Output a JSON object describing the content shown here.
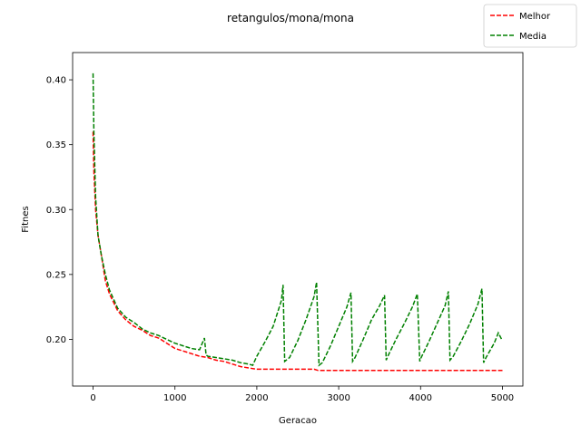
{
  "chart_data": {
    "type": "line",
    "title": "retangulos/mona/mona",
    "xlabel": "Geracao",
    "ylabel": "Fitnes",
    "xlim": [
      -250,
      5250
    ],
    "ylim": [
      0.164,
      0.421
    ],
    "xticks": [
      0,
      1000,
      2000,
      3000,
      4000,
      5000
    ],
    "yticks": [
      0.2,
      0.25,
      0.3,
      0.35,
      0.4
    ],
    "xtick_labels": [
      "0",
      "1000",
      "2000",
      "3000",
      "4000",
      "5000"
    ],
    "ytick_labels": [
      "0.20",
      "0.25",
      "0.30",
      "0.35",
      "0.40"
    ],
    "grid": false,
    "legend": {
      "placement": "top-right"
    },
    "series": [
      {
        "name": "Melhor",
        "color": "#ff0000",
        "style": "dashed",
        "x": [
          0,
          10,
          30,
          60,
          100,
          150,
          200,
          300,
          400,
          500,
          600,
          700,
          800,
          900,
          1000,
          1100,
          1200,
          1300,
          1400,
          1500,
          1600,
          1700,
          1800,
          1900,
          2000,
          2300,
          2700,
          2750,
          3000,
          4000,
          5000
        ],
        "y": [
          0.36,
          0.33,
          0.3,
          0.28,
          0.265,
          0.245,
          0.235,
          0.222,
          0.215,
          0.21,
          0.207,
          0.203,
          0.201,
          0.197,
          0.193,
          0.191,
          0.189,
          0.187,
          0.186,
          0.184,
          0.183,
          0.181,
          0.179,
          0.178,
          0.177,
          0.177,
          0.177,
          0.176,
          0.176,
          0.176,
          0.176
        ]
      },
      {
        "name": "Media",
        "color": "#008000",
        "style": "dashed",
        "x": [
          0,
          10,
          30,
          60,
          100,
          150,
          200,
          300,
          400,
          500,
          600,
          700,
          800,
          900,
          1000,
          1100,
          1200,
          1300,
          1360,
          1380,
          1400,
          1500,
          1600,
          1700,
          1800,
          1900,
          1950,
          2000,
          2100,
          2200,
          2300,
          2320,
          2340,
          2400,
          2500,
          2600,
          2700,
          2730,
          2760,
          2800,
          2900,
          3000,
          3100,
          3150,
          3170,
          3200,
          3300,
          3400,
          3500,
          3560,
          3580,
          3600,
          3700,
          3800,
          3900,
          3960,
          3990,
          4000,
          4100,
          4200,
          4300,
          4340,
          4360,
          4400,
          4500,
          4600,
          4700,
          4750,
          4770,
          4800,
          4900,
          4950,
          4990
        ],
        "y": [
          0.405,
          0.36,
          0.31,
          0.28,
          0.265,
          0.25,
          0.238,
          0.224,
          0.217,
          0.213,
          0.208,
          0.205,
          0.203,
          0.2,
          0.197,
          0.195,
          0.193,
          0.192,
          0.201,
          0.188,
          0.187,
          0.186,
          0.185,
          0.184,
          0.182,
          0.181,
          0.18,
          0.187,
          0.198,
          0.21,
          0.23,
          0.242,
          0.183,
          0.186,
          0.199,
          0.215,
          0.233,
          0.244,
          0.18,
          0.182,
          0.195,
          0.21,
          0.225,
          0.236,
          0.183,
          0.186,
          0.2,
          0.215,
          0.226,
          0.234,
          0.184,
          0.187,
          0.2,
          0.212,
          0.225,
          0.235,
          0.183,
          0.185,
          0.198,
          0.212,
          0.226,
          0.237,
          0.184,
          0.187,
          0.199,
          0.212,
          0.227,
          0.239,
          0.182,
          0.186,
          0.197,
          0.205,
          0.2
        ]
      }
    ]
  }
}
